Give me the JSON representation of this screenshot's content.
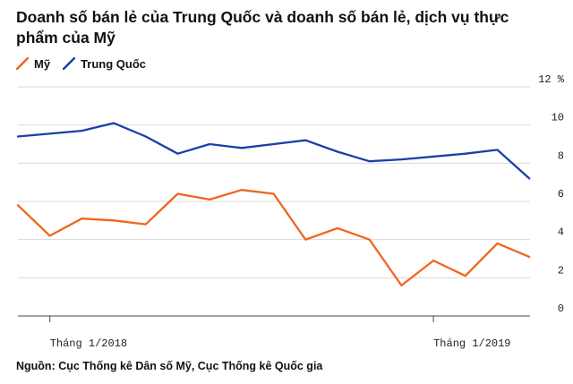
{
  "chart_data": {
    "type": "line",
    "title": "Doanh số bán lẻ của Trung Quốc và doanh số bán lẻ, dịch vụ thực phẩm của Mỹ",
    "source": "Nguồn: Cục Thống kê Dân số Mỹ, Cục Thống kê Quốc gia",
    "x": [
      "2017-12",
      "2018-01",
      "2018-02",
      "2018-03",
      "2018-04",
      "2018-05",
      "2018-06",
      "2018-07",
      "2018-08",
      "2018-09",
      "2018-10",
      "2018-11",
      "2018-12",
      "2019-01",
      "2019-02",
      "2019-03",
      "2019-04",
      "2019-05"
    ],
    "x_tick_labels": [
      {
        "at": "2018-01",
        "label": "Tháng  1/2018"
      },
      {
        "at": "2019-01",
        "label": "Tháng  1/2019"
      }
    ],
    "y_tick_labels": [
      "0",
      "2",
      "4",
      "6",
      "8",
      "10",
      "12 %"
    ],
    "ylim": [
      0,
      12
    ],
    "y_ticks": [
      0,
      2,
      4,
      6,
      8,
      10,
      12
    ],
    "grid": "horizontal",
    "legend_position": "top-left",
    "series": [
      {
        "name": "Mỹ",
        "color": "#f0651f",
        "values": [
          5.8,
          4.2,
          5.1,
          5.0,
          4.8,
          6.4,
          6.1,
          6.6,
          6.4,
          4.0,
          4.6,
          4.0,
          1.6,
          2.9,
          2.1,
          3.8,
          3.1,
          null
        ]
      },
      {
        "name": "Trung Quốc",
        "color": "#1a3fa6",
        "values": [
          9.4,
          null,
          9.7,
          10.1,
          9.4,
          8.5,
          9.0,
          8.8,
          9.0,
          9.2,
          8.6,
          8.1,
          8.2,
          null,
          8.5,
          8.7,
          7.2,
          null
        ],
        "connect_gaps": true
      }
    ]
  }
}
